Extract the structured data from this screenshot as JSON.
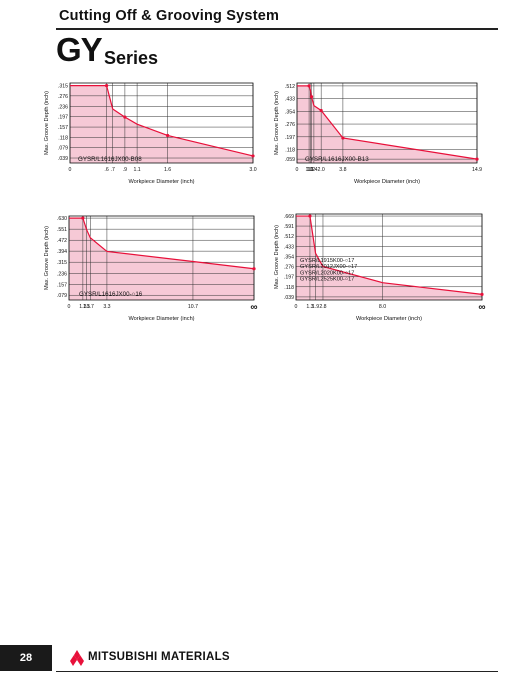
{
  "header": {
    "title": "Cutting Off & Grooving System"
  },
  "series": {
    "letters": "GY",
    "word": "Series"
  },
  "footer": {
    "page_number": "28",
    "brand": "MITSUBISHI MATERIALS"
  },
  "colors": {
    "curve": "#e8103a",
    "fill": "#f6c9d6",
    "grid": "#333333"
  },
  "chart_data": [
    {
      "type": "area",
      "ylabel": "Max. Groove Depth (inch)",
      "xlabel": "Workpiece Diameter (inch)",
      "annotation": "GYSR/L1616JX00-B08",
      "x_ticks": [
        "0",
        ".6",
        ".7",
        ".9",
        "1.1",
        "1.6",
        "3.0"
      ],
      "y_ticks": [
        ".315",
        ".276",
        ".236",
        ".197",
        ".157",
        ".118",
        ".079",
        ".039"
      ],
      "x": [
        0,
        0.6,
        0.7,
        0.9,
        1.1,
        1.6,
        3.0
      ],
      "y": [
        0.315,
        0.315,
        0.226,
        0.195,
        0.168,
        0.125,
        0.047
      ],
      "marker_indices": [
        1,
        3,
        5,
        6
      ]
    },
    {
      "type": "area",
      "ylabel": "Max. Groove Depth (inch)",
      "xlabel": "Workpiece Diameter (inch)",
      "annotation": "GYSR/L1616JX00-B13",
      "x_ticks": [
        "0",
        "1.0",
        "1.1",
        "1.2",
        "1.4",
        "2.0",
        "3.8",
        "14.9"
      ],
      "y_ticks": [
        ".512",
        ".433",
        ".354",
        ".276",
        ".197",
        ".118",
        ".059"
      ],
      "x": [
        0,
        1.0,
        1.1,
        1.2,
        1.4,
        2.0,
        3.8,
        14.9
      ],
      "y": [
        0.512,
        0.512,
        0.49,
        0.445,
        0.39,
        0.36,
        0.19,
        0.059
      ],
      "marker_indices": [
        1,
        3,
        5,
        6,
        7
      ]
    },
    {
      "type": "area",
      "ylabel": "Max. Groove Depth (inch)",
      "xlabel": "Workpiece Diameter (inch)",
      "annotation": "GYSR/L1616JX00-○16",
      "x_ticks": [
        "0",
        "1.3",
        "1.5",
        "1.7",
        "3.3",
        "10.7",
        "∞"
      ],
      "y_ticks": [
        ".630",
        ".551",
        ".472",
        ".394",
        ".315",
        ".236",
        ".157",
        ".079"
      ],
      "x": [
        0,
        1.3,
        1.5,
        1.7,
        3.3,
        10.7,
        "∞"
      ],
      "y": [
        0.63,
        0.63,
        0.548,
        0.49,
        0.392,
        0.32,
        0.268
      ],
      "marker_indices": [
        1,
        6
      ]
    },
    {
      "type": "area",
      "ylabel": "Max. Groove Depth (inch)",
      "xlabel": "Workpiece Diameter (inch)",
      "annotation": [
        "GYSR/L1915K00-○17",
        "GYSR/L2012JX00-○17",
        "GYSR/L2020K00-○17",
        "GYSR/L2525K00-○17"
      ],
      "x_ticks": [
        "0",
        "1.3",
        "1.9",
        "2.8",
        "8.0",
        "∞"
      ],
      "y_ticks": [
        ".669",
        ".591",
        ".512",
        ".433",
        ".354",
        ".276",
        ".197",
        ".118",
        ".039"
      ],
      "x": [
        0,
        1.3,
        1.9,
        2.8,
        8.0,
        "∞"
      ],
      "y": [
        0.669,
        0.669,
        0.38,
        0.276,
        0.15,
        0.059
      ],
      "marker_indices": [
        1,
        5
      ]
    }
  ]
}
